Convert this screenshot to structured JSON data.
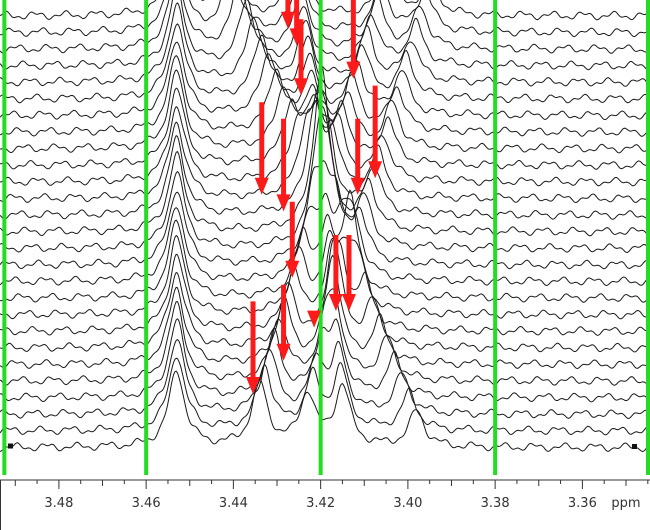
{
  "chart_data": {
    "type": "line",
    "title": "",
    "xlabel": "",
    "ylabel": "",
    "x_unit": "ppm",
    "x_reversed": true,
    "xlim": [
      3.4935,
      3.3445
    ],
    "x_ticks": [
      3.48,
      3.46,
      3.44,
      3.42,
      3.4,
      3.38,
      3.36
    ],
    "x_tick_labels": [
      "3.48",
      "3.46",
      "3.44",
      "3.42",
      "3.40",
      "3.38",
      "3.36"
    ],
    "grid": false,
    "legend": "none",
    "spectrum_count": 27,
    "reference_lines_ppm": [
      3.4925,
      3.46,
      3.42,
      3.38,
      3.3445
    ],
    "reference_line_color": "#22dd22",
    "trace_color": "#1a1a1a",
    "arrow_color": "#ff1a1a",
    "fixed_peak_ppm": 3.453,
    "shifting_peaks": [
      {
        "start_ppm": 3.442,
        "end_ppm": 3.398,
        "start_height": 0.85,
        "end_height": 0.45
      },
      {
        "start_ppm": 3.425,
        "end_ppm": 3.415,
        "start_height": 0.7,
        "end_height": 0.75
      },
      {
        "start_ppm": 3.405,
        "end_ppm": 3.434,
        "start_height": 0.6,
        "end_height": 0.8
      },
      {
        "start_ppm": 3.395,
        "end_ppm": 3.423,
        "start_height": 0.5,
        "end_height": 0.65
      }
    ],
    "arrows": [
      {
        "ppm": 3.4275,
        "from_spectrum": 0,
        "to_spectrum": 3
      },
      {
        "ppm": 3.4255,
        "from_spectrum": 0,
        "to_spectrum": 4
      },
      {
        "ppm": 3.4245,
        "from_spectrum": 2,
        "to_spectrum": 7
      },
      {
        "ppm": 3.4125,
        "from_spectrum": 0,
        "to_spectrum": 6
      },
      {
        "ppm": 3.4075,
        "from_spectrum": 6,
        "to_spectrum": 12
      },
      {
        "ppm": 3.4335,
        "from_spectrum": 7,
        "to_spectrum": 13
      },
      {
        "ppm": 3.4285,
        "from_spectrum": 8,
        "to_spectrum": 14
      },
      {
        "ppm": 3.4115,
        "from_spectrum": 8,
        "to_spectrum": 13
      },
      {
        "ppm": 3.4265,
        "from_spectrum": 13,
        "to_spectrum": 18
      },
      {
        "ppm": 3.4165,
        "from_spectrum": 15,
        "to_spectrum": 20
      },
      {
        "ppm": 3.4135,
        "from_spectrum": 15,
        "to_spectrum": 20
      },
      {
        "ppm": 3.4215,
        "from_spectrum": 20,
        "to_spectrum": 21
      },
      {
        "ppm": 3.4355,
        "from_spectrum": 19,
        "to_spectrum": 25
      },
      {
        "ppm": 3.4285,
        "from_spectrum": 18,
        "to_spectrum": 23
      }
    ]
  }
}
